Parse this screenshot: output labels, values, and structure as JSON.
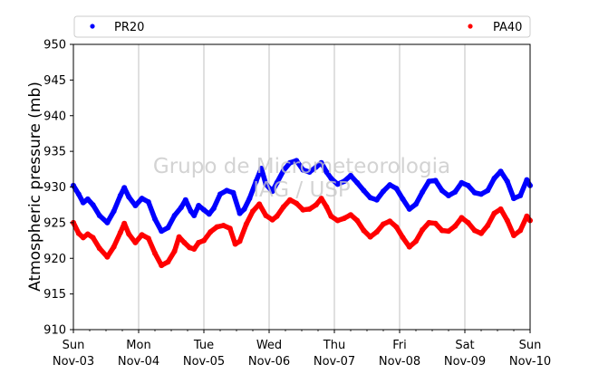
{
  "chart_data": {
    "type": "scatter",
    "title": "",
    "xlabel": "",
    "ylabel": "Atmospheric pressure (mb)",
    "ylim": [
      910,
      950
    ],
    "yticks": [
      910,
      915,
      920,
      925,
      930,
      935,
      940,
      945,
      950
    ],
    "xlim": [
      0,
      7
    ],
    "xticks": [
      {
        "x": 0,
        "day": "Sun",
        "date": "Nov-03"
      },
      {
        "x": 1,
        "day": "Mon",
        "date": "Nov-04"
      },
      {
        "x": 2,
        "day": "Tue",
        "date": "Nov-05"
      },
      {
        "x": 3,
        "day": "Wed",
        "date": "Nov-06"
      },
      {
        "x": 4,
        "day": "Thu",
        "date": "Nov-07"
      },
      {
        "x": 5,
        "day": "Fri",
        "date": "Nov-08"
      },
      {
        "x": 6,
        "day": "Sat",
        "date": "Nov-09"
      },
      {
        "x": 7,
        "day": "Sun",
        "date": "Nov-10"
      }
    ],
    "vertical_grid": true,
    "legend_placement": "top (above plot, two columns)",
    "watermark": [
      "Grupo de Micrometeorologia",
      "IAG / USP"
    ],
    "series": [
      {
        "name": "PR20",
        "color": "#0000ff",
        "points": [
          [
            0.0,
            930.2
          ],
          [
            0.08,
            929.0
          ],
          [
            0.15,
            927.8
          ],
          [
            0.22,
            928.3
          ],
          [
            0.3,
            927.5
          ],
          [
            0.4,
            926.0
          ],
          [
            0.52,
            925.0
          ],
          [
            0.62,
            926.6
          ],
          [
            0.72,
            928.8
          ],
          [
            0.78,
            929.9
          ],
          [
            0.85,
            928.6
          ],
          [
            0.95,
            927.4
          ],
          [
            1.05,
            928.4
          ],
          [
            1.15,
            927.9
          ],
          [
            1.25,
            925.5
          ],
          [
            1.35,
            923.8
          ],
          [
            1.45,
            924.3
          ],
          [
            1.55,
            926.0
          ],
          [
            1.65,
            927.1
          ],
          [
            1.72,
            928.2
          ],
          [
            1.8,
            926.6
          ],
          [
            1.85,
            926.0
          ],
          [
            1.92,
            927.4
          ],
          [
            2.0,
            926.8
          ],
          [
            2.08,
            926.2
          ],
          [
            2.15,
            927.0
          ],
          [
            2.25,
            929.0
          ],
          [
            2.35,
            929.5
          ],
          [
            2.45,
            929.2
          ],
          [
            2.55,
            926.3
          ],
          [
            2.62,
            926.9
          ],
          [
            2.7,
            928.4
          ],
          [
            2.8,
            930.8
          ],
          [
            2.88,
            932.6
          ],
          [
            2.95,
            930.4
          ],
          [
            3.05,
            929.4
          ],
          [
            3.12,
            930.6
          ],
          [
            3.22,
            932.3
          ],
          [
            3.32,
            933.4
          ],
          [
            3.42,
            933.7
          ],
          [
            3.52,
            932.4
          ],
          [
            3.62,
            932.1
          ],
          [
            3.72,
            932.8
          ],
          [
            3.8,
            933.4
          ],
          [
            3.88,
            932.1
          ],
          [
            3.95,
            931.2
          ],
          [
            4.05,
            930.4
          ],
          [
            4.15,
            930.8
          ],
          [
            4.25,
            931.6
          ],
          [
            4.35,
            930.6
          ],
          [
            4.45,
            929.5
          ],
          [
            4.55,
            928.5
          ],
          [
            4.65,
            928.2
          ],
          [
            4.75,
            929.4
          ],
          [
            4.85,
            930.3
          ],
          [
            4.95,
            929.8
          ],
          [
            5.05,
            928.3
          ],
          [
            5.15,
            926.9
          ],
          [
            5.25,
            927.6
          ],
          [
            5.35,
            929.3
          ],
          [
            5.45,
            930.8
          ],
          [
            5.55,
            930.9
          ],
          [
            5.65,
            929.5
          ],
          [
            5.75,
            928.8
          ],
          [
            5.85,
            929.3
          ],
          [
            5.95,
            930.6
          ],
          [
            6.05,
            930.2
          ],
          [
            6.15,
            929.2
          ],
          [
            6.25,
            929.0
          ],
          [
            6.35,
            929.5
          ],
          [
            6.45,
            931.2
          ],
          [
            6.55,
            932.2
          ],
          [
            6.65,
            930.8
          ],
          [
            6.75,
            928.4
          ],
          [
            6.85,
            928.8
          ],
          [
            6.95,
            931.0
          ],
          [
            7.0,
            930.2
          ]
        ]
      },
      {
        "name": "PA40",
        "color": "#ff0000",
        "points": [
          [
            0.0,
            925.0
          ],
          [
            0.08,
            923.5
          ],
          [
            0.15,
            922.9
          ],
          [
            0.22,
            923.4
          ],
          [
            0.3,
            922.9
          ],
          [
            0.4,
            921.4
          ],
          [
            0.52,
            920.2
          ],
          [
            0.62,
            921.6
          ],
          [
            0.72,
            923.6
          ],
          [
            0.78,
            924.9
          ],
          [
            0.85,
            923.4
          ],
          [
            0.95,
            922.2
          ],
          [
            1.05,
            923.3
          ],
          [
            1.15,
            922.8
          ],
          [
            1.25,
            920.7
          ],
          [
            1.35,
            919.0
          ],
          [
            1.45,
            919.5
          ],
          [
            1.55,
            921.0
          ],
          [
            1.62,
            923.0
          ],
          [
            1.7,
            922.2
          ],
          [
            1.78,
            921.5
          ],
          [
            1.85,
            921.3
          ],
          [
            1.92,
            922.2
          ],
          [
            2.0,
            922.5
          ],
          [
            2.1,
            923.7
          ],
          [
            2.2,
            924.4
          ],
          [
            2.3,
            924.6
          ],
          [
            2.4,
            924.2
          ],
          [
            2.48,
            922.0
          ],
          [
            2.55,
            922.4
          ],
          [
            2.65,
            924.8
          ],
          [
            2.75,
            926.6
          ],
          [
            2.85,
            927.6
          ],
          [
            2.95,
            926.0
          ],
          [
            3.05,
            925.4
          ],
          [
            3.12,
            925.9
          ],
          [
            3.22,
            927.2
          ],
          [
            3.32,
            928.2
          ],
          [
            3.42,
            927.7
          ],
          [
            3.52,
            926.8
          ],
          [
            3.62,
            926.9
          ],
          [
            3.72,
            927.5
          ],
          [
            3.8,
            928.4
          ],
          [
            3.88,
            927.2
          ],
          [
            3.95,
            925.9
          ],
          [
            4.05,
            925.3
          ],
          [
            4.15,
            925.6
          ],
          [
            4.25,
            926.1
          ],
          [
            4.35,
            925.3
          ],
          [
            4.45,
            923.9
          ],
          [
            4.55,
            923.0
          ],
          [
            4.65,
            923.7
          ],
          [
            4.75,
            924.8
          ],
          [
            4.85,
            925.2
          ],
          [
            4.95,
            924.4
          ],
          [
            5.05,
            922.9
          ],
          [
            5.15,
            921.6
          ],
          [
            5.25,
            922.4
          ],
          [
            5.35,
            924.0
          ],
          [
            5.45,
            925.0
          ],
          [
            5.55,
            924.9
          ],
          [
            5.65,
            923.9
          ],
          [
            5.75,
            923.8
          ],
          [
            5.85,
            924.5
          ],
          [
            5.95,
            925.7
          ],
          [
            6.05,
            925.0
          ],
          [
            6.15,
            923.9
          ],
          [
            6.25,
            923.5
          ],
          [
            6.35,
            924.6
          ],
          [
            6.45,
            926.3
          ],
          [
            6.55,
            926.9
          ],
          [
            6.65,
            925.3
          ],
          [
            6.75,
            923.2
          ],
          [
            6.85,
            923.9
          ],
          [
            6.95,
            925.9
          ],
          [
            7.0,
            925.3
          ]
        ]
      }
    ]
  }
}
